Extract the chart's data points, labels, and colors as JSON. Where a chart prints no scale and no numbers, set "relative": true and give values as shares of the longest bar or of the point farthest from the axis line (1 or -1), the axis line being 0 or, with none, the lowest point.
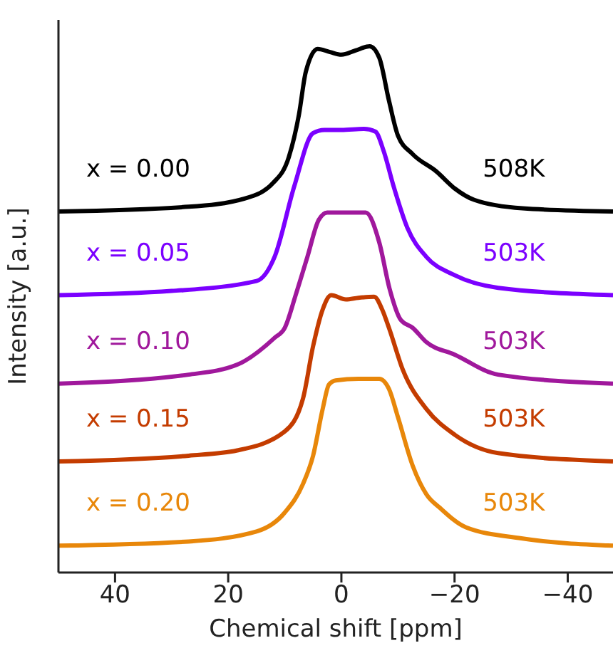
{
  "chart_data": {
    "type": "line",
    "relative": true,
    "xlabel": "Chemical shift [ppm]",
    "ylabel": "Intensity [a.u.]",
    "xlim": [
      50,
      -48
    ],
    "xticks": [
      40,
      20,
      0,
      {
        "value": -20,
        "label": "−20"
      },
      {
        "value": -40,
        "label": "−40"
      }
    ],
    "legend": false,
    "marker": "none",
    "line_style": "solid",
    "grid": false,
    "annotations": [
      "508K",
      "503K",
      "503K",
      "503K",
      "503K"
    ],
    "series": [
      {
        "name": "x = 0.00",
        "color": "#000000",
        "x": [
          50,
          27,
          17,
          12,
          9.3,
          7.5,
          6.3,
          4.2,
          2,
          0,
          -2.5,
          -5,
          -6.7,
          -8.4,
          -10,
          -12.6,
          -16.8,
          -20,
          -23.5,
          -32,
          -48
        ],
        "values": [
          0.686,
          0.695,
          0.711,
          0.741,
          0.789,
          0.87,
          0.951,
          0.995,
          0.989,
          0.984,
          0.992,
          1,
          0.978,
          0.897,
          0.83,
          0.795,
          0.762,
          0.73,
          0.708,
          0.692,
          0.686
        ]
      },
      {
        "name": "x = 0.05",
        "color": "#7b00ff",
        "x": [
          50,
          30,
          15,
          11.8,
          8.3,
          5,
          3,
          0,
          -4,
          -6,
          -7.5,
          -9.2,
          -11.7,
          -15,
          -20,
          -27.7,
          -48
        ],
        "values": [
          0.527,
          0.535,
          0.554,
          0.6,
          0.735,
          0.835,
          0.841,
          0.841,
          0.843,
          0.838,
          0.8,
          0.735,
          0.654,
          0.6,
          0.565,
          0.541,
          0.527
        ]
      },
      {
        "name": "x = 0.10",
        "color": "#a0189c",
        "x": [
          50,
          27,
          18.4,
          11.8,
          10,
          8,
          6,
          4,
          2.5,
          0,
          -4.3,
          -6.7,
          -8.5,
          -10.5,
          -12.6,
          -15,
          -20,
          -27.7,
          -48
        ],
        "values": [
          0.359,
          0.376,
          0.395,
          0.446,
          0.465,
          0.53,
          0.6,
          0.67,
          0.684,
          0.684,
          0.684,
          0.627,
          0.54,
          0.48,
          0.465,
          0.438,
          0.414,
          0.376,
          0.359
        ]
      },
      {
        "name": "x = 0.15",
        "color": "#c43c00",
        "x": [
          50,
          27,
          18.4,
          10,
          6.8,
          5,
          3.3,
          1.8,
          -0.8,
          -3,
          -5.8,
          -7.2,
          -8.4,
          -10.9,
          -15,
          -20,
          -27.7,
          -48
        ],
        "values": [
          0.211,
          0.222,
          0.232,
          0.268,
          0.33,
          0.43,
          0.5,
          0.527,
          0.519,
          0.522,
          0.524,
          0.5,
          0.465,
          0.384,
          0.311,
          0.262,
          0.227,
          0.211
        ]
      },
      {
        "name": "x = 0.20",
        "color": "#e8870a",
        "x": [
          50,
          27,
          15,
          10,
          6.8,
          5,
          3.3,
          2.2,
          1,
          -3,
          -6.7,
          -8.4,
          -10,
          -12.6,
          -15,
          -17.5,
          -22,
          -31.8,
          -48
        ],
        "values": [
          0.051,
          0.059,
          0.078,
          0.114,
          0.168,
          0.222,
          0.311,
          0.357,
          0.365,
          0.368,
          0.368,
          0.349,
          0.295,
          0.203,
          0.149,
          0.122,
          0.086,
          0.065,
          0.051
        ]
      }
    ]
  }
}
